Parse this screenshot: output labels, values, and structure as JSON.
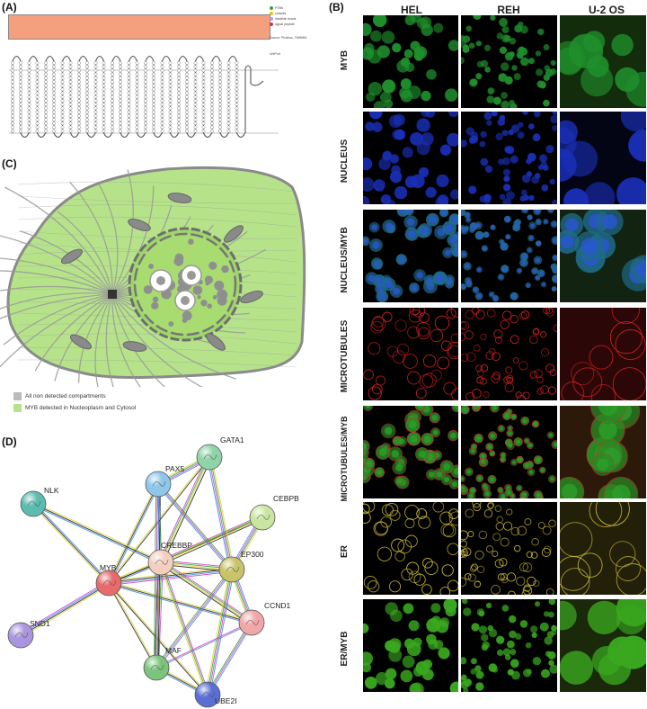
{
  "panels": {
    "A": {
      "label": "(A)",
      "legend": [
        "PTMs",
        "variants",
        "disulfide bonds",
        "signal peptide",
        "Source: Phobius, TMHMM, UniProt"
      ],
      "legend_colors": [
        "#3aa03a",
        "#f0c000",
        "#a0a0ff",
        "#e03030",
        "#bbbbbb"
      ],
      "bar_color": "#f4a07e"
    },
    "B": {
      "label": "(B)",
      "columns": [
        "HEL",
        "REH",
        "U-2 OS"
      ],
      "rows": [
        "MYB",
        "NUCLEUS",
        "NUCLEUS/MYB",
        "MICROTUBULES",
        "MICROTUBULES/MYB",
        "ER",
        "ER/MYB"
      ]
    },
    "C": {
      "label": "(C)",
      "legend": [
        {
          "color": "#bbbbbb",
          "text": "All non detected compartments"
        },
        {
          "color": "#b6e38a",
          "text": "MYB detected in Nucleoplasm and Cytosol"
        }
      ]
    },
    "D": {
      "label": "(D)",
      "nodes": [
        {
          "name": "GATA1",
          "color": "#8fd3a8"
        },
        {
          "name": "PAX5",
          "color": "#8ec7ea"
        },
        {
          "name": "NLK",
          "color": "#5bbcb0"
        },
        {
          "name": "CEBPB",
          "color": "#c8e6a0"
        },
        {
          "name": "CREBBP",
          "color": "#f3cfc0"
        },
        {
          "name": "EP300",
          "color": "#c9c46a"
        },
        {
          "name": "MYB",
          "color": "#e86a6a"
        },
        {
          "name": "CCND1",
          "color": "#f1a7a7"
        },
        {
          "name": "SND1",
          "color": "#a996de"
        },
        {
          "name": "MAF",
          "color": "#7cc47c"
        },
        {
          "name": "UBE2I",
          "color": "#5a6fd6"
        }
      ]
    }
  }
}
